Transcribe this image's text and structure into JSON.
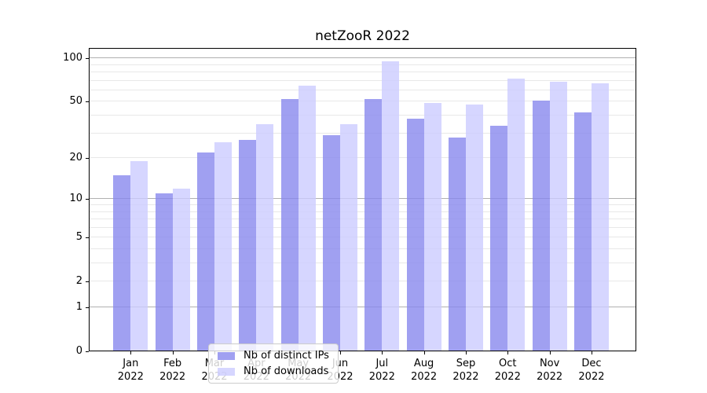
{
  "chart_data": {
    "type": "bar",
    "title": "netZooR 2022",
    "categories": [
      "Jan 2022",
      "Feb 2022",
      "Mar 2022",
      "Apr 2022",
      "May 2022",
      "Jun 2022",
      "Jul 2022",
      "Aug 2022",
      "Sep 2022",
      "Oct 2022",
      "Nov 2022",
      "Dec 2022"
    ],
    "series": [
      {
        "name": "Nb of distinct IPs",
        "values": [
          15,
          11,
          22,
          27,
          52,
          29,
          52,
          38,
          28,
          34,
          51,
          42
        ]
      },
      {
        "name": "Nb of downloads",
        "values": [
          19,
          12,
          26,
          35,
          65,
          35,
          95,
          49,
          48,
          72,
          69,
          67
        ]
      }
    ],
    "yscale": "log1p",
    "ylim": [
      0,
      118
    ],
    "grid": true,
    "legend_position": "lower center"
  },
  "y_axis": {
    "tick_values": [
      0,
      1,
      2,
      5,
      10,
      20,
      50,
      100
    ],
    "tick_labels": [
      "0",
      "1",
      "2",
      "5",
      "10",
      "20",
      "50",
      "100"
    ],
    "major_grid_values": [
      1,
      10,
      100
    ],
    "minor_grid_values": [
      2,
      3,
      4,
      5,
      6,
      7,
      8,
      9,
      20,
      30,
      40,
      50,
      60,
      70,
      80,
      90
    ]
  },
  "legend": {
    "items": [
      {
        "label": "Nb of distinct IPs",
        "series": "ips"
      },
      {
        "label": "Nb of downloads",
        "series": "downloads"
      }
    ]
  },
  "colors": {
    "ips": "#8888ee",
    "downloads": "#ccccff",
    "bar_alpha": 0.8,
    "major_grid": "#b0b0b0",
    "minor_grid": "#e8e8e8",
    "axis": "#000000"
  }
}
